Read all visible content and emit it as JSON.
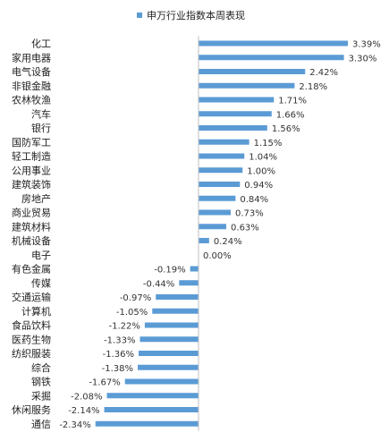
{
  "chart_data": {
    "type": "bar",
    "orientation": "horizontal",
    "legend": {
      "position": "top",
      "label": "申万行业指数本周表现"
    },
    "colors": {
      "bar": "#5b9bd5",
      "axis": "#bfbfbf"
    },
    "grid": false,
    "categories": [
      "化工",
      "家用电器",
      "电气设备",
      "非银金融",
      "农林牧渔",
      "汽车",
      "银行",
      "国防军工",
      "轻工制造",
      "公用事业",
      "建筑装饰",
      "房地产",
      "商业贸易",
      "建筑材料",
      "机械设备",
      "电子",
      "有色金属",
      "传媒",
      "交通运输",
      "计算机",
      "食品饮料",
      "医药生物",
      "纺织服装",
      "综合",
      "钢铁",
      "采掘",
      "休闲服务",
      "通信"
    ],
    "series": [
      {
        "name": "申万行业指数本周表现",
        "values": [
          3.39,
          3.3,
          2.42,
          2.18,
          1.71,
          1.66,
          1.56,
          1.15,
          1.04,
          1.0,
          0.94,
          0.84,
          0.73,
          0.63,
          0.24,
          0.0,
          -0.19,
          -0.44,
          -0.97,
          -1.05,
          -1.22,
          -1.33,
          -1.36,
          -1.38,
          -1.67,
          -2.08,
          -2.14,
          -2.34
        ]
      }
    ],
    "value_labels": [
      "3.39%",
      "3.30%",
      "2.42%",
      "2.18%",
      "1.71%",
      "1.66%",
      "1.56%",
      "1.15%",
      "1.04%",
      "1.00%",
      "0.94%",
      "0.84%",
      "0.73%",
      "0.63%",
      "0.24%",
      "0.00%",
      "-0.19%",
      "-0.44%",
      "-0.97%",
      "-1.05%",
      "-1.22%",
      "-1.33%",
      "-1.36%",
      "-1.38%",
      "-1.67%",
      "-2.08%",
      "-2.14%",
      "-2.34%"
    ],
    "xlim": [
      -2.34,
      3.39
    ]
  }
}
